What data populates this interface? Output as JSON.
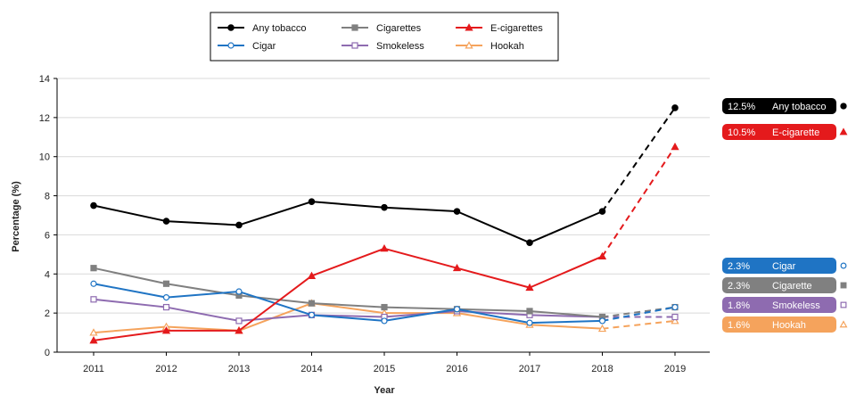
{
  "chart_data": {
    "type": "line",
    "title": "",
    "xlabel": "Year",
    "ylabel": "Percentage (%)",
    "ylim": [
      0,
      14
    ],
    "yticks": [
      0,
      2,
      4,
      6,
      8,
      10,
      12,
      14
    ],
    "x": [
      "2011",
      "2012",
      "2013",
      "2014",
      "2015",
      "2016",
      "2017",
      "2018",
      "2019"
    ],
    "projected_from": "2018",
    "grid": true,
    "legend_position": "top",
    "series": [
      {
        "name": "Any tobacco",
        "color": "#000000",
        "marker": "filled-circle",
        "values": [
          7.5,
          6.7,
          6.5,
          7.7,
          7.4,
          7.2,
          5.6,
          7.2,
          12.5
        ],
        "end_label": {
          "value": "12.5%",
          "name": "Any tobacco"
        }
      },
      {
        "name": "Cigar",
        "color": "#1f74c4",
        "marker": "open-circle",
        "values": [
          3.5,
          2.8,
          3.1,
          1.9,
          1.6,
          2.2,
          1.5,
          1.6,
          2.3
        ],
        "end_label": {
          "value": "2.3%",
          "name": "Cigar"
        }
      },
      {
        "name": "Cigarettes",
        "color": "#808080",
        "marker": "filled-square",
        "values": [
          4.3,
          3.5,
          2.9,
          2.5,
          2.3,
          2.2,
          2.1,
          1.8,
          2.3
        ],
        "end_label": {
          "value": "2.3%",
          "name": "Cigarette"
        }
      },
      {
        "name": "Smokeless",
        "color": "#8e6bb0",
        "marker": "open-square",
        "values": [
          2.7,
          2.3,
          1.6,
          1.9,
          1.8,
          2.1,
          1.9,
          1.8,
          1.8
        ],
        "end_label": {
          "value": "1.8%",
          "name": "Smokeless"
        }
      },
      {
        "name": "E-cigarettes",
        "color": "#e41a1c",
        "marker": "filled-triangle",
        "values": [
          0.6,
          1.1,
          1.1,
          3.9,
          5.3,
          4.3,
          3.3,
          4.9,
          10.5
        ],
        "end_label": {
          "value": "10.5%",
          "name": "E-cigarette"
        }
      },
      {
        "name": "Hookah",
        "color": "#f5a35c",
        "marker": "open-triangle",
        "values": [
          1.0,
          1.3,
          1.1,
          2.5,
          2.0,
          2.0,
          1.4,
          1.2,
          1.6
        ],
        "end_label": {
          "value": "1.6%",
          "name": "Hookah"
        }
      }
    ]
  }
}
